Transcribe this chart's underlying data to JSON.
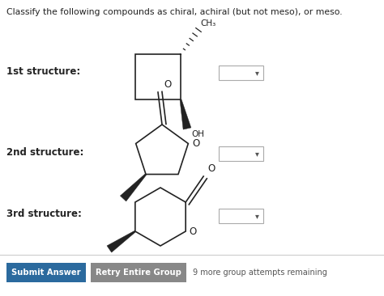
{
  "title_text": "Classify the following compounds as chiral, achiral (but not meso), or meso.",
  "bg_color": "#ffffff",
  "structure_labels": [
    "1st structure:",
    "2nd structure:",
    "3rd structure:"
  ],
  "title_fontsize": 7.8,
  "label_fontsize": 8.5,
  "submit_btn_text": "Submit Answer",
  "submit_btn_color": "#2b6a9e",
  "submit_btn_text_color": "#ffffff",
  "retry_btn_text": "Retry Entire Group",
  "retry_btn_color": "#888888",
  "retry_btn_text_color": "#ffffff",
  "attempts_text": "9 more group attempts remaining",
  "attempts_fontsize": 7.0,
  "dropdown_color": "#ffffff",
  "dropdown_border": "#aaaaaa"
}
